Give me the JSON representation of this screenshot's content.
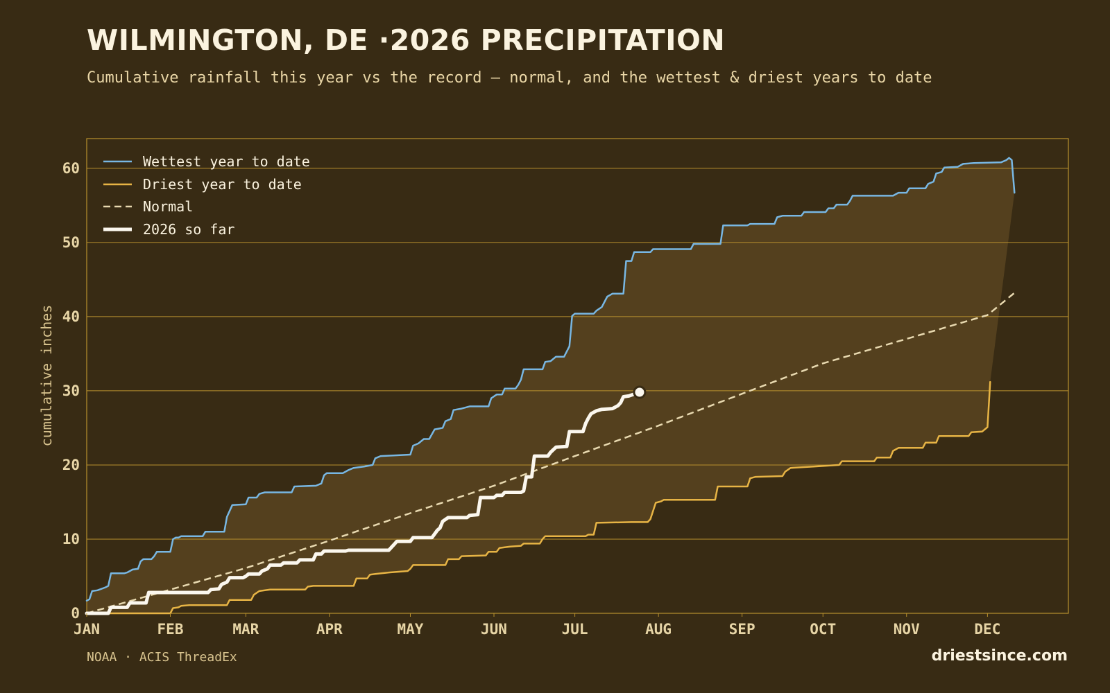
{
  "header": {
    "title": "WILMINGTON, DE ·2026 PRECIPITATION",
    "subtitle": "Cumulative rainfall this year vs the record — normal, and the wettest & driest years to date"
  },
  "footer": {
    "source": "NOAA · ACIS ThreadEx",
    "site": "driestsince.com"
  },
  "colors": {
    "background": "#382b14",
    "band": "#54401e",
    "grid": "#b8902e",
    "wettest": "#78b7e3",
    "driest": "#e7b445",
    "normal": "#e8d9b0",
    "current": "#fbf7ee"
  },
  "chart_data": {
    "type": "line",
    "x_unit": "day of year",
    "xlim": [
      1,
      365
    ],
    "ylim": [
      0,
      64
    ],
    "ylabel": "cumulative inches",
    "yticks": [
      0,
      10,
      20,
      30,
      40,
      50,
      60
    ],
    "months": [
      {
        "label": "JAN",
        "day": 1
      },
      {
        "label": "FEB",
        "day": 32
      },
      {
        "label": "MAR",
        "day": 60
      },
      {
        "label": "APR",
        "day": 91
      },
      {
        "label": "MAY",
        "day": 121
      },
      {
        "label": "JUN",
        "day": 152
      },
      {
        "label": "JUL",
        "day": 182
      },
      {
        "label": "AUG",
        "day": 213
      },
      {
        "label": "SEP",
        "day": 244
      },
      {
        "label": "OCT",
        "day": 274
      },
      {
        "label": "NOV",
        "day": 305
      },
      {
        "label": "DEC",
        "day": 335
      }
    ],
    "legend_position": "top-left",
    "series": [
      {
        "key": "wettest",
        "name": "Wettest year to date",
        "style": "solid",
        "points": [
          [
            1,
            1.7
          ],
          [
            2,
            1.9
          ],
          [
            3,
            3.0
          ],
          [
            5,
            3.1
          ],
          [
            8,
            3.5
          ],
          [
            9,
            3.7
          ],
          [
            10,
            5.4
          ],
          [
            15,
            5.4
          ],
          [
            16,
            5.5
          ],
          [
            18,
            5.9
          ],
          [
            20,
            6.0
          ],
          [
            21,
            7.0
          ],
          [
            22,
            7.3
          ],
          [
            25,
            7.3
          ],
          [
            26,
            7.7
          ],
          [
            27,
            8.3
          ],
          [
            32,
            8.3
          ],
          [
            33,
            10.0
          ],
          [
            34,
            10.2
          ],
          [
            35,
            10.2
          ],
          [
            36,
            10.4
          ],
          [
            44,
            10.4
          ],
          [
            45,
            11.0
          ],
          [
            52,
            11.0
          ],
          [
            53,
            13.0
          ],
          [
            55,
            14.6
          ],
          [
            60,
            14.7
          ],
          [
            61,
            15.6
          ],
          [
            64,
            15.6
          ],
          [
            65,
            16.1
          ],
          [
            67,
            16.3
          ],
          [
            77,
            16.3
          ],
          [
            78,
            17.1
          ],
          [
            86,
            17.2
          ],
          [
            88,
            17.5
          ],
          [
            89,
            18.6
          ],
          [
            90,
            18.9
          ],
          [
            96,
            18.9
          ],
          [
            98,
            19.3
          ],
          [
            100,
            19.6
          ],
          [
            104,
            19.8
          ],
          [
            107,
            20.0
          ],
          [
            108,
            20.9
          ],
          [
            110,
            21.2
          ],
          [
            116,
            21.3
          ],
          [
            121,
            21.4
          ],
          [
            122,
            22.6
          ],
          [
            124,
            22.9
          ],
          [
            126,
            23.5
          ],
          [
            128,
            23.5
          ],
          [
            130,
            24.8
          ],
          [
            133,
            25.0
          ],
          [
            134,
            25.9
          ],
          [
            136,
            26.2
          ],
          [
            137,
            27.4
          ],
          [
            140,
            27.6
          ],
          [
            143,
            27.9
          ],
          [
            150,
            27.9
          ],
          [
            151,
            29.0
          ],
          [
            153,
            29.5
          ],
          [
            155,
            29.5
          ],
          [
            156,
            30.3
          ],
          [
            160,
            30.3
          ],
          [
            161,
            30.8
          ],
          [
            162,
            31.5
          ],
          [
            163,
            32.9
          ],
          [
            170,
            32.9
          ],
          [
            171,
            33.9
          ],
          [
            173,
            34.0
          ],
          [
            175,
            34.6
          ],
          [
            178,
            34.6
          ],
          [
            180,
            36.0
          ],
          [
            181,
            40.1
          ],
          [
            182,
            40.4
          ],
          [
            189,
            40.4
          ],
          [
            190,
            40.8
          ],
          [
            192,
            41.3
          ],
          [
            194,
            42.7
          ],
          [
            196,
            43.1
          ],
          [
            200,
            43.1
          ],
          [
            201,
            47.5
          ],
          [
            203,
            47.5
          ],
          [
            204,
            48.7
          ],
          [
            210,
            48.7
          ],
          [
            211,
            49.1
          ],
          [
            225,
            49.1
          ],
          [
            226,
            49.8
          ],
          [
            236,
            49.8
          ],
          [
            237,
            52.3
          ],
          [
            246,
            52.3
          ],
          [
            247,
            52.5
          ],
          [
            256,
            52.5
          ],
          [
            257,
            53.4
          ],
          [
            259,
            53.6
          ],
          [
            266,
            53.6
          ],
          [
            267,
            54.1
          ],
          [
            275,
            54.1
          ],
          [
            276,
            54.6
          ],
          [
            278,
            54.6
          ],
          [
            279,
            55.1
          ],
          [
            283,
            55.1
          ],
          [
            284,
            55.6
          ],
          [
            285,
            56.3
          ],
          [
            300,
            56.3
          ],
          [
            302,
            56.7
          ],
          [
            305,
            56.7
          ],
          [
            306,
            57.3
          ],
          [
            312,
            57.3
          ],
          [
            313,
            57.9
          ],
          [
            315,
            58.2
          ],
          [
            316,
            59.3
          ],
          [
            318,
            59.5
          ],
          [
            319,
            60.1
          ],
          [
            324,
            60.2
          ],
          [
            326,
            60.6
          ],
          [
            330,
            60.7
          ],
          [
            340,
            60.8
          ],
          [
            342,
            61.1
          ],
          [
            343,
            61.4
          ],
          [
            344,
            61.1
          ],
          [
            345,
            56.7
          ]
        ]
      },
      {
        "key": "driest",
        "name": "Driest year to date",
        "style": "solid",
        "points": [
          [
            1,
            0.0
          ],
          [
            32,
            0.0
          ],
          [
            33,
            0.7
          ],
          [
            35,
            0.8
          ],
          [
            36,
            1.0
          ],
          [
            39,
            1.1
          ],
          [
            53,
            1.1
          ],
          [
            54,
            1.8
          ],
          [
            62,
            1.8
          ],
          [
            63,
            2.5
          ],
          [
            65,
            3.0
          ],
          [
            69,
            3.2
          ],
          [
            82,
            3.2
          ],
          [
            83,
            3.6
          ],
          [
            85,
            3.7
          ],
          [
            100,
            3.7
          ],
          [
            101,
            4.7
          ],
          [
            105,
            4.7
          ],
          [
            106,
            5.2
          ],
          [
            108,
            5.3
          ],
          [
            113,
            5.5
          ],
          [
            120,
            5.7
          ],
          [
            121,
            6.0
          ],
          [
            122,
            6.5
          ],
          [
            134,
            6.5
          ],
          [
            135,
            7.3
          ],
          [
            139,
            7.3
          ],
          [
            140,
            7.7
          ],
          [
            149,
            7.8
          ],
          [
            150,
            8.3
          ],
          [
            153,
            8.3
          ],
          [
            154,
            8.8
          ],
          [
            158,
            9.0
          ],
          [
            162,
            9.1
          ],
          [
            163,
            9.4
          ],
          [
            169,
            9.4
          ],
          [
            170,
            10.0
          ],
          [
            171,
            10.4
          ],
          [
            186,
            10.4
          ],
          [
            187,
            10.6
          ],
          [
            189,
            10.6
          ],
          [
            190,
            12.2
          ],
          [
            203,
            12.3
          ],
          [
            209,
            12.3
          ],
          [
            210,
            12.7
          ],
          [
            212,
            14.9
          ],
          [
            214,
            15.1
          ],
          [
            215,
            15.3
          ],
          [
            234,
            15.3
          ],
          [
            235,
            17.1
          ],
          [
            246,
            17.1
          ],
          [
            247,
            18.2
          ],
          [
            249,
            18.4
          ],
          [
            259,
            18.5
          ],
          [
            260,
            19.1
          ],
          [
            262,
            19.6
          ],
          [
            271,
            19.8
          ],
          [
            280,
            20.0
          ],
          [
            281,
            20.5
          ],
          [
            293,
            20.5
          ],
          [
            294,
            21.0
          ],
          [
            299,
            21.0
          ],
          [
            300,
            21.9
          ],
          [
            302,
            22.3
          ],
          [
            311,
            22.3
          ],
          [
            312,
            23.0
          ],
          [
            316,
            23.0
          ],
          [
            317,
            23.9
          ],
          [
            328,
            23.9
          ],
          [
            329,
            24.4
          ],
          [
            333,
            24.5
          ],
          [
            334,
            24.8
          ],
          [
            335,
            25.1
          ],
          [
            336,
            31.2
          ]
        ]
      },
      {
        "key": "normal",
        "name": "Normal",
        "style": "dashed",
        "points": [
          [
            1,
            0.0
          ],
          [
            32,
            3.2
          ],
          [
            60,
            6.1
          ],
          [
            91,
            9.8
          ],
          [
            121,
            13.5
          ],
          [
            152,
            17.2
          ],
          [
            182,
            21.2
          ],
          [
            213,
            25.3
          ],
          [
            244,
            29.6
          ],
          [
            274,
            33.7
          ],
          [
            305,
            37.0
          ],
          [
            335,
            40.2
          ],
          [
            345,
            43.2
          ]
        ]
      },
      {
        "key": "current",
        "name": "2026 so far",
        "style": "bold",
        "points": [
          [
            1,
            0.0
          ],
          [
            9,
            0.0
          ],
          [
            10,
            0.8
          ],
          [
            16,
            0.8
          ],
          [
            17,
            1.4
          ],
          [
            23,
            1.4
          ],
          [
            24,
            2.8
          ],
          [
            46,
            2.8
          ],
          [
            47,
            3.2
          ],
          [
            50,
            3.3
          ],
          [
            51,
            3.9
          ],
          [
            53,
            4.2
          ],
          [
            54,
            4.8
          ],
          [
            59,
            4.8
          ],
          [
            60,
            5.0
          ],
          [
            61,
            5.3
          ],
          [
            65,
            5.3
          ],
          [
            66,
            5.7
          ],
          [
            68,
            6.0
          ],
          [
            69,
            6.5
          ],
          [
            73,
            6.5
          ],
          [
            74,
            6.8
          ],
          [
            79,
            6.8
          ],
          [
            80,
            7.2
          ],
          [
            85,
            7.2
          ],
          [
            86,
            8.0
          ],
          [
            88,
            8.0
          ],
          [
            89,
            8.4
          ],
          [
            97,
            8.4
          ],
          [
            98,
            8.5
          ],
          [
            113,
            8.5
          ],
          [
            114,
            8.9
          ],
          [
            115,
            9.3
          ],
          [
            116,
            9.7
          ],
          [
            121,
            9.7
          ],
          [
            122,
            10.2
          ],
          [
            129,
            10.2
          ],
          [
            130,
            10.7
          ],
          [
            131,
            11.2
          ],
          [
            132,
            11.5
          ],
          [
            133,
            12.4
          ],
          [
            135,
            12.9
          ],
          [
            142,
            12.9
          ],
          [
            143,
            13.2
          ],
          [
            146,
            13.3
          ],
          [
            147,
            15.6
          ],
          [
            152,
            15.6
          ],
          [
            153,
            15.9
          ],
          [
            155,
            15.9
          ],
          [
            156,
            16.3
          ],
          [
            162,
            16.3
          ],
          [
            163,
            16.5
          ],
          [
            164,
            18.4
          ],
          [
            166,
            18.4
          ],
          [
            167,
            21.2
          ],
          [
            172,
            21.2
          ],
          [
            173,
            21.7
          ],
          [
            175,
            22.4
          ],
          [
            179,
            22.5
          ],
          [
            180,
            24.5
          ],
          [
            185,
            24.5
          ],
          [
            186,
            25.6
          ],
          [
            187,
            26.3
          ],
          [
            188,
            26.9
          ],
          [
            190,
            27.3
          ],
          [
            192,
            27.5
          ],
          [
            196,
            27.6
          ],
          [
            198,
            28.0
          ],
          [
            199,
            28.4
          ],
          [
            200,
            29.2
          ],
          [
            202,
            29.3
          ],
          [
            206,
            29.8
          ]
        ]
      }
    ],
    "end_marker": {
      "day": 206,
      "value": 29.8
    }
  }
}
